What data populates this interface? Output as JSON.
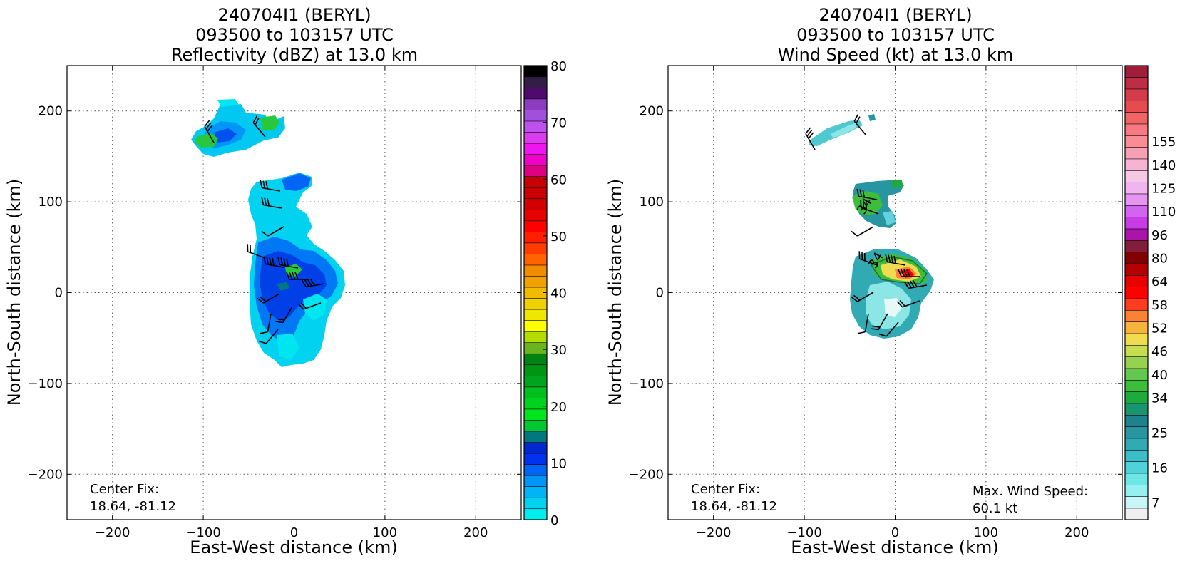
{
  "chart_data": [
    {
      "type": "heatmap",
      "title_lines": [
        "240704I1 (BERYL)",
        "093500 to 103157 UTC",
        "Reflectivity (dBZ) at 13.0 km"
      ],
      "xlabel": "East-West distance (km)",
      "ylabel": "North-South distance (km)",
      "xlim": [
        -250,
        250
      ],
      "ylim": [
        -250,
        250
      ],
      "xticks": [
        -200,
        -100,
        0,
        100,
        200
      ],
      "yticks": [
        -200,
        -100,
        0,
        100,
        200
      ],
      "xtick_labels": [
        "−200",
        "−100",
        "0",
        "100",
        "200"
      ],
      "ytick_labels": [
        "−200",
        "−100",
        "0",
        "100",
        "200"
      ],
      "grid": true,
      "annotation_left": [
        "Center Fix:",
        "18.64, -81.12"
      ],
      "colorbar": {
        "min": 0,
        "max": 80,
        "ticks": [
          0,
          10,
          20,
          30,
          40,
          50,
          60,
          70,
          80
        ],
        "tick_labels": [
          "0",
          "10",
          "20",
          "30",
          "40",
          "50",
          "60",
          "70",
          "80"
        ],
        "colors": [
          "#00eeee",
          "#00d2f0",
          "#00b4f5",
          "#0096f8",
          "#0064f5",
          "#0032f0",
          "#0028d2",
          "#007882",
          "#00c832",
          "#00e61e",
          "#00d21e",
          "#00bf1e",
          "#00a51e",
          "#009614",
          "#008214",
          "#6ab41e",
          "#b4dc00",
          "#ffff00",
          "#f0e600",
          "#f0d200",
          "#f0bb00",
          "#f0a000",
          "#f08c00",
          "#ff6400",
          "#ff3c00",
          "#ff1e00",
          "#ff0000",
          "#e60000",
          "#d20000",
          "#c80000",
          "#c80000",
          "#dc0082",
          "#f000c8",
          "#f014f0",
          "#dc3cf0",
          "#be50f0",
          "#a050dc",
          "#8c3cbe",
          "#500a6e",
          "#321e46",
          "#000000"
        ]
      },
      "data_regions": [
        {
          "label": "northern cluster",
          "center_km": [
            -55,
            170
          ],
          "dbz_range": [
            2,
            28
          ]
        },
        {
          "label": "main band",
          "center_km": [
            0,
            30
          ],
          "dbz_range": [
            2,
            26
          ]
        }
      ]
    },
    {
      "type": "heatmap",
      "title_lines": [
        "240704I1 (BERYL)",
        "093500 to 103157 UTC",
        "Wind Speed (kt) at 13.0 km"
      ],
      "xlabel": "East-West distance (km)",
      "ylabel": "North-South distance (km)",
      "xlim": [
        -250,
        250
      ],
      "ylim": [
        -250,
        250
      ],
      "xticks": [
        -200,
        -100,
        0,
        100,
        200
      ],
      "yticks": [
        -200,
        -100,
        0,
        100,
        200
      ],
      "xtick_labels": [
        "−200",
        "−100",
        "0",
        "100",
        "200"
      ],
      "ytick_labels": [
        "−200",
        "−100",
        "0",
        "100",
        "200"
      ],
      "grid": true,
      "annotation_left": [
        "Center Fix:",
        "18.64, -81.12"
      ],
      "annotation_right": [
        "Max. Wind Speed:",
        "60.1 kt"
      ],
      "contour_label": "34",
      "max_wind_kt": 60.1,
      "colorbar": {
        "tick_labels": [
          "7",
          "16",
          "25",
          "34",
          "40",
          "46",
          "52",
          "58",
          "64",
          "80",
          "96",
          "110",
          "125",
          "140",
          "155"
        ],
        "tick_band_index": [
          1,
          4,
          7,
          10,
          12,
          14,
          16,
          18,
          20,
          22,
          24,
          26,
          28,
          30,
          32
        ],
        "colors": [
          "#f0f0f0",
          "#c8f5f5",
          "#96f0f0",
          "#6ee6e6",
          "#50d2dc",
          "#3cbec8",
          "#32aab4",
          "#2896a0",
          "#1e828c",
          "#19966e",
          "#1eaa3c",
          "#3cbe3c",
          "#64c850",
          "#96d250",
          "#c8dc50",
          "#f0dc50",
          "#f5b43c",
          "#fa8232",
          "#ff3c1e",
          "#ff0000",
          "#e60000",
          "#b40000",
          "#820000",
          "#821e3c",
          "#aa14aa",
          "#c83ce6",
          "#d264f0",
          "#e696f0",
          "#f0b4f0",
          "#f5c8e6",
          "#f5b4d2",
          "#f5a0b4",
          "#fa8c96",
          "#fa7882",
          "#f06464",
          "#e64b50",
          "#d23c4b",
          "#be2d46",
          "#a01e3c"
        ]
      },
      "data_regions": [
        {
          "label": "northern arc",
          "center_km": [
            -70,
            180
          ]
        },
        {
          "label": "middle cluster",
          "center_km": [
            -25,
            95
          ],
          "kt_range": [
            25,
            40
          ]
        },
        {
          "label": "inner core",
          "center_km": [
            0,
            0
          ],
          "kt_range": [
            7,
            60.1
          ]
        }
      ]
    }
  ]
}
